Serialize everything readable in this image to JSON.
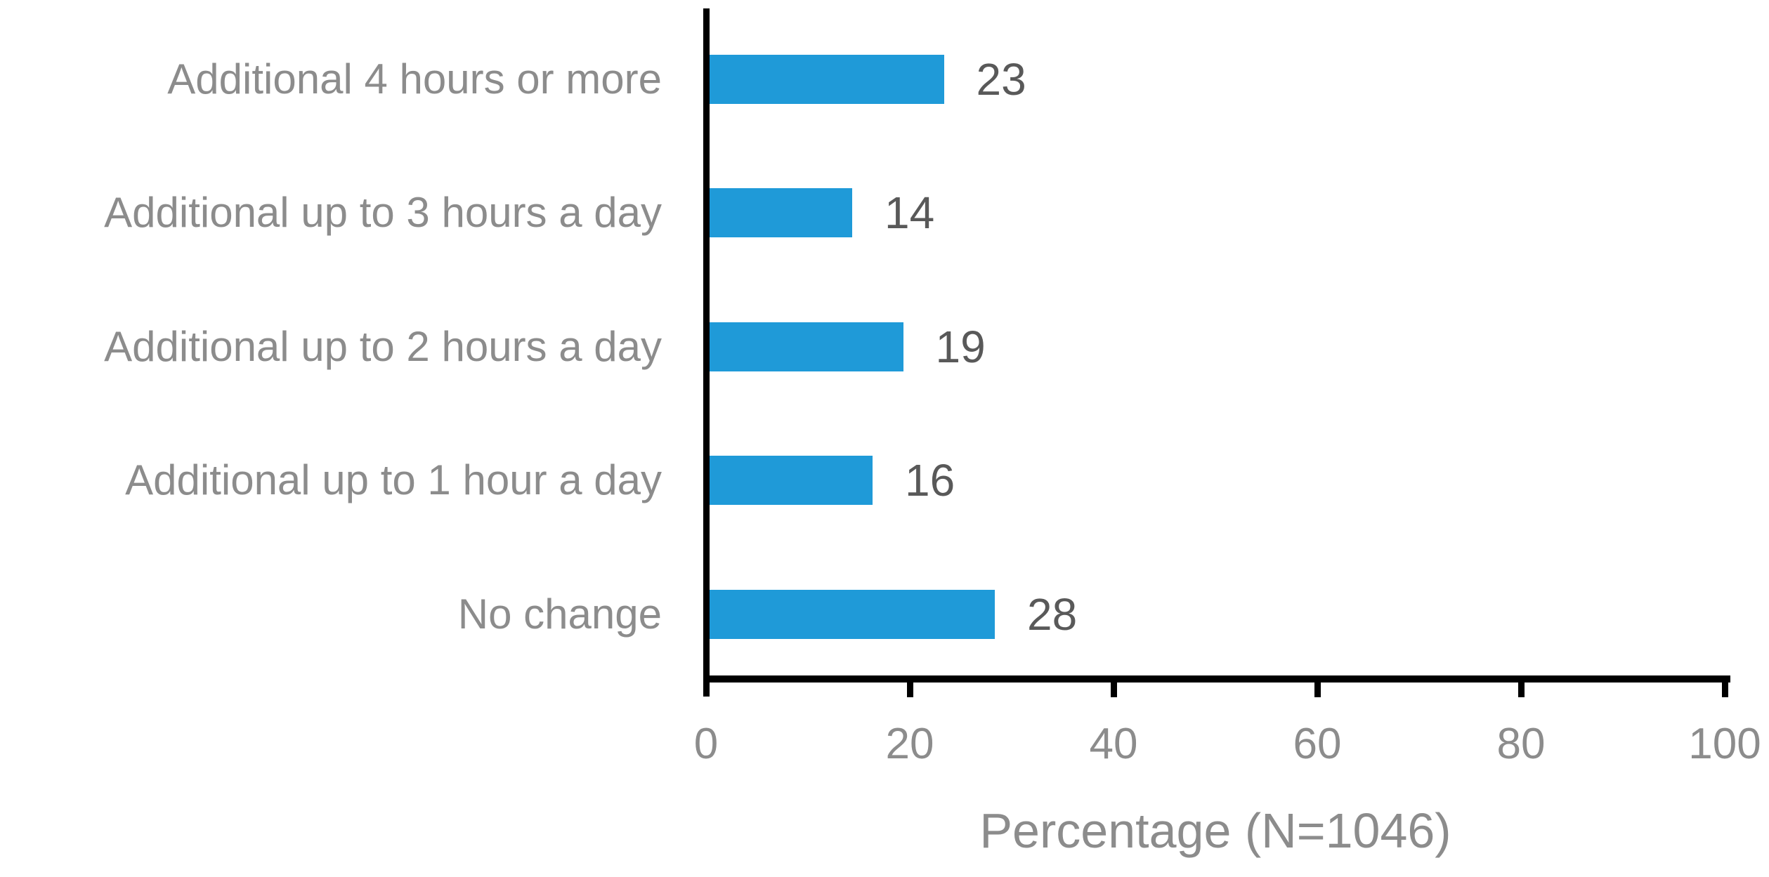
{
  "chart_data": {
    "type": "bar",
    "orientation": "horizontal",
    "title": "",
    "categories": [
      "Additional 4 hours or more",
      "Additional up to 3 hours a day",
      "Additional up to 2 hours a day",
      "Additional up to 1 hour a day",
      "No change"
    ],
    "values": [
      23,
      14,
      19,
      16,
      28
    ],
    "data_labels": [
      23,
      14,
      19,
      16,
      28
    ],
    "xlabel": "Percentage (N=1046)",
    "ylabel": "",
    "xlim": [
      0,
      100
    ],
    "xticks": [
      0,
      20,
      40,
      60,
      80,
      100
    ],
    "grid": false,
    "legend": false,
    "colors": {
      "bar": "#1F9AD8",
      "category_label": "#8C8C8C",
      "value_label": "#595959",
      "tick_label": "#8C8C8C",
      "axis_title": "#8C8C8C",
      "axis_line": "#000000",
      "background": "#FFFFFF"
    }
  }
}
